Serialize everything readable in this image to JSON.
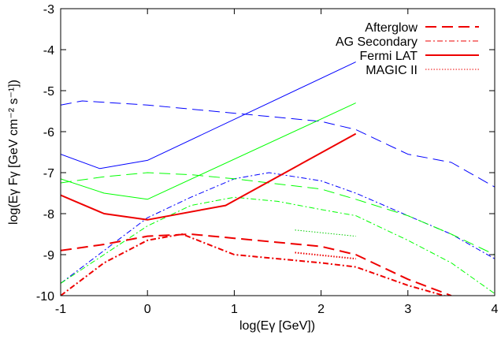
{
  "chart_data": {
    "type": "line",
    "xlabel": "log(Eγ [GeV])",
    "ylabel": "log(Eγ Fγ [GeV cm⁻² s⁻¹])",
    "xlim": [
      -1,
      4
    ],
    "ylim": [
      -10,
      -3
    ],
    "xticks": [
      -1,
      0,
      1,
      2,
      3,
      4
    ],
    "yticks": [
      -10,
      -9,
      -8,
      -7,
      -6,
      -5,
      -4,
      -3
    ],
    "grid": false,
    "legend_position": "top-right",
    "legend": [
      {
        "label": "Afterglow",
        "dash": "long-dash"
      },
      {
        "label": "AG Secondary",
        "dash": "dash-dot"
      },
      {
        "label": "Fermi LAT",
        "dash": "solid"
      },
      {
        "label": "MAGIC II",
        "dash": "dotted"
      }
    ],
    "series": [
      {
        "color": "#0000ff",
        "dash": "solid",
        "width": 1,
        "x": [
          -1,
          -0.55,
          0,
          2.4
        ],
        "y": [
          -6.55,
          -6.9,
          -6.7,
          -4.3
        ]
      },
      {
        "color": "#0000ff",
        "dash": "long-dash",
        "width": 1,
        "x": [
          -1,
          -0.75,
          0,
          1,
          2,
          2.4,
          3,
          3.5,
          4
        ],
        "y": [
          -5.35,
          -5.25,
          -5.35,
          -5.55,
          -5.75,
          -5.95,
          -6.55,
          -6.75,
          -7.35
        ]
      },
      {
        "color": "#0000ff",
        "dash": "dash-dot",
        "width": 1,
        "x": [
          -1,
          -0.5,
          0,
          0.5,
          1,
          1.4,
          2,
          2.4,
          3,
          3.5,
          4
        ],
        "y": [
          -9.7,
          -8.9,
          -8.1,
          -7.6,
          -7.15,
          -7.0,
          -7.2,
          -7.5,
          -8.05,
          -8.5,
          -9.1
        ]
      },
      {
        "color": "#00ff00",
        "dash": "solid",
        "width": 1,
        "x": [
          -1,
          -0.5,
          0,
          2.4
        ],
        "y": [
          -7.15,
          -7.5,
          -7.65,
          -5.3
        ]
      },
      {
        "color": "#00ff00",
        "dash": "long-dash",
        "width": 1,
        "x": [
          -1,
          -0.5,
          0,
          0.5,
          1,
          2,
          2.4,
          3,
          3.5,
          4
        ],
        "y": [
          -7.25,
          -7.1,
          -7.0,
          -7.05,
          -7.15,
          -7.4,
          -7.65,
          -8.05,
          -8.5,
          -9.0
        ]
      },
      {
        "color": "#00ff00",
        "dash": "dash-dot",
        "width": 1,
        "x": [
          -1,
          -0.5,
          0,
          0.5,
          1,
          1.5,
          2,
          2.4,
          3,
          3.5,
          4
        ],
        "y": [
          -9.7,
          -9.0,
          -8.3,
          -7.8,
          -7.6,
          -7.7,
          -7.9,
          -8.05,
          -8.65,
          -9.2,
          -9.95
        ]
      },
      {
        "color": "#00cc00",
        "dash": "dotted",
        "width": 1,
        "x": [
          1.7,
          2.4
        ],
        "y": [
          -8.4,
          -8.55
        ]
      },
      {
        "color": "#ee0000",
        "dash": "solid",
        "width": 2,
        "x": [
          -1,
          -0.5,
          0,
          0.9,
          1.5,
          2.4
        ],
        "y": [
          -7.55,
          -8.0,
          -8.15,
          -7.8,
          -7.1,
          -6.05
        ]
      },
      {
        "color": "#ee0000",
        "dash": "long-dash",
        "width": 2,
        "x": [
          -1,
          -0.5,
          0,
          0.5,
          1,
          2,
          2.4,
          3,
          3.5
        ],
        "y": [
          -8.9,
          -8.75,
          -8.55,
          -8.5,
          -8.6,
          -8.8,
          -9.0,
          -9.6,
          -10.0
        ]
      },
      {
        "color": "#ee0000",
        "dash": "dash-dot",
        "width": 2,
        "x": [
          -1,
          -0.5,
          0,
          0.4,
          1,
          2,
          2.4,
          3,
          3.5
        ],
        "y": [
          -10.0,
          -9.2,
          -8.65,
          -8.5,
          -9.0,
          -9.2,
          -9.3,
          -9.75,
          -10.05
        ]
      },
      {
        "color": "#ee0000",
        "dash": "dotted",
        "width": 2,
        "x": [
          1.7,
          2.4
        ],
        "y": [
          -8.95,
          -9.1
        ]
      }
    ]
  }
}
